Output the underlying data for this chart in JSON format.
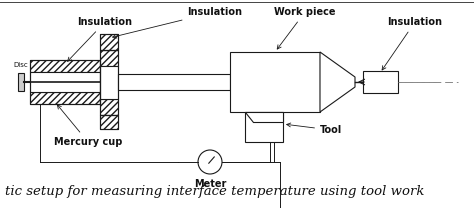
{
  "caption": "tic setup for measuring interface temperature using tool work",
  "bg_color": "#ffffff",
  "line_color": "#1a1a1a",
  "label_color": "#111111",
  "labels": {
    "insulation_left": "Insulation",
    "insulation_mid": "Insulation",
    "insulation_right": "Insulation",
    "work_piece": "Work piece",
    "mercury_cup": "Mercury cup",
    "tool": "Tool",
    "meter": "Meter",
    "disc": "Disc"
  },
  "caption_fontsize": 9.5,
  "label_fontsize": 7.0
}
